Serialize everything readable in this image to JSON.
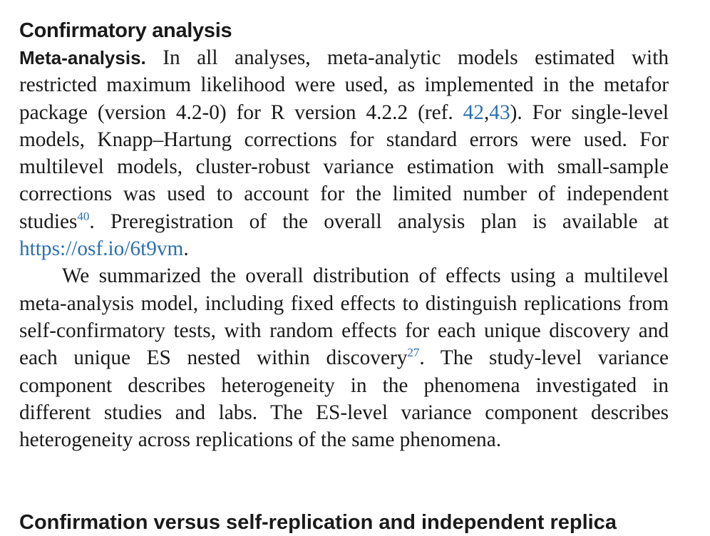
{
  "section": {
    "heading": "Confirmatory analysis"
  },
  "meta_analysis": {
    "run_in_heading": "Meta-analysis.",
    "p1_text_a": " In all analyses, meta-analytic models estimated with restricted maximum likelihood were used, as implemented in the metafor package (version 4.2-0) for R version 4.2.2 (ref. ",
    "ref_42": "42",
    "ref_sep": ",",
    "ref_43": "43",
    "p1_text_b": "). For single-level models, Knapp–Hartung corrections for standard errors were used. For multilevel models, cluster-robust variance estimation with small-sample corrections was used to account for the limited number of independent studies",
    "cite_40": "40",
    "p1_text_c": ". Preregistration of the overall analysis plan is available at ",
    "osf_link": "https://osf.io/6t9vm",
    "p1_text_d": ".",
    "p2_text_a": "We summarized the overall distribution of effects using a mul­tilevel meta-analysis model, including fixed effects to distinguish replications from self-confirmatory tests, with random effects for each unique discovery and each unique ES nested within discovery",
    "cite_27": "27",
    "p2_text_b": ". The study-level variance component describes heterogeneity in the phenomena investigated in different studies and labs. The ES-level variance component describes heterogeneity across replications of the same phenomena."
  },
  "next_section": {
    "heading": "Confirmation versus self-replication and independent replica"
  },
  "colors": {
    "text": "#1a1a1a",
    "link": "#2a6fb0"
  }
}
